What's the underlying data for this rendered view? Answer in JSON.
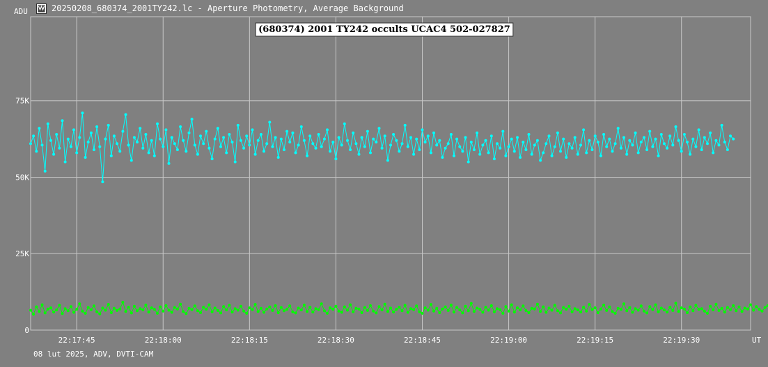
{
  "window": {
    "title": "20250208_680374_2001TY242.lc - Aperture Photometry, Average Background"
  },
  "footer": {
    "text": "08 lut 2025, ADV, DVTI-CAM"
  },
  "icons": {
    "app": "lightcurve-app-icon"
  },
  "colors": {
    "background": "#808080",
    "grid": "#c8c8c8",
    "target_series": "#00ffff",
    "comparison_series": "#00ff00"
  },
  "chart_data": {
    "type": "line",
    "title": "(680374) 2001 TY242 occults UCAC4 502-027827",
    "ylabel": "ADU",
    "xlabel": "UT",
    "y_ticks": [
      {
        "value": 0,
        "label": "0"
      },
      {
        "value": 25000,
        "label": "25K"
      },
      {
        "value": 50000,
        "label": "50K"
      },
      {
        "value": 75000,
        "label": "75K"
      }
    ],
    "x_ticks": [
      "22:17:45",
      "22:18:00",
      "22:18:15",
      "22:18:30",
      "22:18:45",
      "22:19:00",
      "22:19:15",
      "22:19:30"
    ],
    "x_range": [
      "22:17:37",
      "22:19:42"
    ],
    "ylim": [
      0,
      102500
    ],
    "grid": true,
    "series": [
      {
        "role": "target",
        "color": "#00ffff",
        "x_step_seconds": 0.5,
        "values": [
          61000,
          63500,
          58500,
          66000,
          60500,
          52000,
          67500,
          62000,
          57500,
          64000,
          59500,
          68500,
          55000,
          62500,
          60000,
          65500,
          58000,
          63000,
          71000,
          56500,
          61500,
          64500,
          59000,
          66500,
          60000,
          48500,
          62500,
          67000,
          57000,
          63500,
          61000,
          58500,
          65000,
          70500,
          60500,
          55500,
          63000,
          61500,
          66000,
          59500,
          64000,
          58000,
          62000,
          57000,
          67500,
          62500,
          60000,
          65500,
          54500,
          63000,
          61000,
          59000,
          66500,
          62000,
          58500,
          64500,
          69000,
          60500,
          57500,
          63500,
          61000,
          65000,
          59500,
          56000,
          62500,
          66000,
          60000,
          63000,
          58000,
          64000,
          61500,
          55000,
          67000,
          62000,
          59500,
          63500,
          60500,
          65500,
          57500,
          62000,
          64000,
          58500,
          61000,
          68000,
          60000,
          63000,
          56500,
          62500,
          59000,
          65000,
          61500,
          64500,
          58000,
          60500,
          66500,
          62000,
          57000,
          63500,
          61000,
          59500,
          64000,
          60000,
          62500,
          65500,
          58500,
          61500,
          56000,
          63000,
          60500,
          67500,
          62000,
          59000,
          64500,
          61000,
          57500,
          63000,
          60000,
          65000,
          58000,
          62500,
          61500,
          66000,
          59500,
          63500,
          55500,
          60500,
          64000,
          62000,
          58500,
          61000,
          67000,
          60000,
          63000,
          57500,
          62500,
          59000,
          65500,
          61500,
          63500,
          58000,
          64500,
          60500,
          62000,
          56500,
          59500,
          61000,
          64000,
          57000,
          62500,
          60000,
          58500,
          63000,
          55000,
          61500,
          59000,
          64500,
          57500,
          60500,
          62000,
          58000,
          63500,
          56000,
          61000,
          59500,
          65000,
          57000,
          60000,
          62500,
          58500,
          63000,
          56500,
          61500,
          59000,
          64000,
          57500,
          60500,
          62000,
          55500,
          58000,
          61000,
          63500,
          57000,
          60000,
          64500,
          58500,
          62500,
          56500,
          61000,
          59500,
          63000,
          57500,
          60500,
          65500,
          58000,
          62000,
          59000,
          63500,
          61500,
          57000,
          64000,
          60000,
          62500,
          58500,
          61000,
          66000,
          59500,
          63000,
          57500,
          62000,
          60500,
          64500,
          58000,
          61500,
          63000,
          59000,
          65000,
          60000,
          62500,
          57000,
          64000,
          61000,
          59500,
          63500,
          60500,
          66500,
          62000,
          58500,
          64000,
          61500,
          57500,
          62500,
          60000,
          65500,
          59000,
          63000,
          61000,
          64500,
          58000,
          62000,
          60500,
          67000,
          61500,
          59000,
          63500,
          62500
        ]
      },
      {
        "role": "comparison",
        "color": "#00ff00",
        "x_step_seconds": 0.5,
        "values": [
          6500,
          5200,
          7600,
          6100,
          8300,
          5600,
          6900,
          7300,
          5900,
          6600,
          8100,
          5400,
          7000,
          6300,
          7700,
          5800,
          6800,
          8600,
          6200,
          5500,
          7400,
          6700,
          7900,
          6000,
          5300,
          7200,
          6500,
          8400,
          5700,
          7100,
          6400,
          6900,
          9100,
          6100,
          7500,
          5600,
          7800,
          6300,
          7000,
          6600,
          8200,
          5900,
          7300,
          6800,
          5500,
          7600,
          6200,
          8000,
          6500,
          5800,
          7400,
          6900,
          8500,
          6100,
          5400,
          7100,
          6700,
          7900,
          6300,
          5700,
          7500,
          6800,
          8300,
          6000,
          7200,
          6400,
          5600,
          7700,
          6600,
          8100,
          5900,
          7000,
          6500,
          7800,
          6200,
          5500,
          7300,
          6700,
          8400,
          6100,
          7100,
          5800,
          6900,
          7600,
          6400,
          8000,
          5700,
          7400,
          6300,
          6800,
          7900,
          6000,
          5600,
          7200,
          6600,
          8200,
          6100,
          7500,
          5900,
          7000,
          6700,
          8600,
          6300,
          5500,
          7300,
          6800,
          7800,
          6200,
          5800,
          7600,
          6500,
          8300,
          6000,
          7100,
          6900,
          5700,
          7400,
          6400,
          8000,
          6200,
          5600,
          7700,
          6600,
          8500,
          6100,
          7200,
          5900,
          6800,
          7500,
          6300,
          8100,
          5800,
          7000,
          6700,
          7900,
          6000,
          5500,
          7300,
          6500,
          8400,
          6200,
          7100,
          5700,
          6900,
          7600,
          6400,
          8200,
          5900,
          7400,
          6600,
          5600,
          7800,
          6300,
          8700,
          6100,
          7200,
          6800,
          5800,
          7500,
          6500,
          8000,
          6000,
          7000,
          6700,
          5500,
          7700,
          6200,
          8300,
          5900,
          7300,
          6600,
          7900,
          6400,
          5700,
          7100,
          6900,
          8500,
          6100,
          7600,
          5800,
          7200,
          6500,
          8100,
          6300,
          5600,
          7400,
          6800,
          7800,
          6000,
          7000,
          6600,
          5900,
          7500,
          6200,
          8400,
          6700,
          7300,
          5700,
          6900,
          8200,
          6400,
          7600,
          6100,
          5500,
          7100,
          6800,
          8600,
          6300,
          7400,
          5800,
          7000,
          6500,
          7900,
          6200,
          5600,
          7700,
          6700,
          8300,
          6000,
          7200,
          6600,
          5900,
          7500,
          6400,
          8800,
          6100,
          7300,
          6900,
          5700,
          7600,
          6300,
          8100,
          6800,
          7000,
          6200,
          5500,
          7800,
          6600,
          8500,
          6400,
          7100,
          5900,
          7400,
          6700,
          8000,
          6300,
          7600,
          6100,
          7200,
          6900,
          8300,
          6500,
          7700,
          6800,
          6200,
          7400,
          8000,
          6600
        ]
      }
    ]
  }
}
